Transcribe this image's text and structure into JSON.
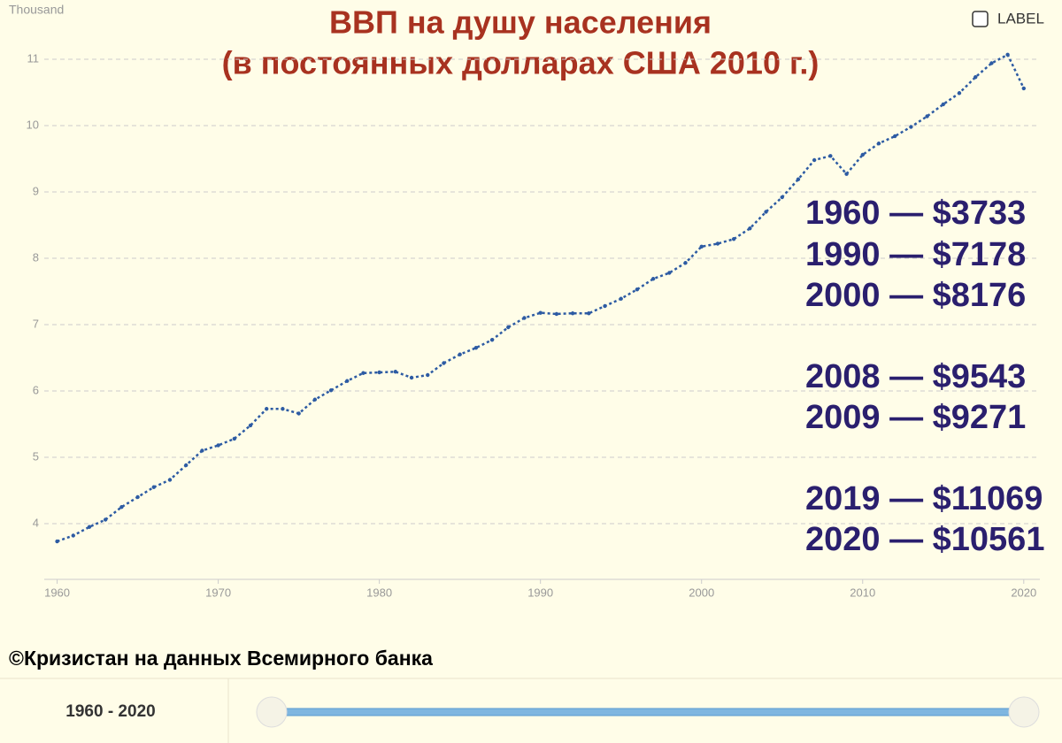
{
  "chart_data": {
    "type": "line",
    "title": "ВВП на душу населения",
    "subtitle": "(в постоянных долларах США 2010 г.)",
    "y_unit_label": "Thousand",
    "x": [
      1960,
      1961,
      1962,
      1963,
      1964,
      1965,
      1966,
      1967,
      1968,
      1969,
      1970,
      1971,
      1972,
      1973,
      1974,
      1975,
      1976,
      1977,
      1978,
      1979,
      1980,
      1981,
      1982,
      1983,
      1984,
      1985,
      1986,
      1987,
      1988,
      1989,
      1990,
      1991,
      1992,
      1993,
      1994,
      1995,
      1996,
      1997,
      1998,
      1999,
      2000,
      2001,
      2002,
      2003,
      2004,
      2005,
      2006,
      2007,
      2008,
      2009,
      2010,
      2011,
      2012,
      2013,
      2014,
      2015,
      2016,
      2017,
      2018,
      2019,
      2020
    ],
    "series": [
      {
        "color": "#2d5ba3",
        "values": [
          3.733,
          3.82,
          3.95,
          4.06,
          4.25,
          4.4,
          4.55,
          4.66,
          4.88,
          5.1,
          5.18,
          5.28,
          5.48,
          5.73,
          5.73,
          5.66,
          5.87,
          6.01,
          6.15,
          6.27,
          6.28,
          6.29,
          6.2,
          6.24,
          6.42,
          6.55,
          6.65,
          6.77,
          6.96,
          7.1,
          7.178,
          7.16,
          7.17,
          7.17,
          7.28,
          7.39,
          7.53,
          7.69,
          7.78,
          7.93,
          8.176,
          8.22,
          8.29,
          8.45,
          8.7,
          8.92,
          9.19,
          9.48,
          9.543,
          9.271,
          9.56,
          9.73,
          9.84,
          9.98,
          10.14,
          10.32,
          10.49,
          10.73,
          10.94,
          11.069,
          10.561
        ]
      }
    ],
    "xlim": [
      1959.2,
      2021
    ],
    "xticks": [
      1960,
      1970,
      1980,
      1990,
      2000,
      2010,
      2020
    ],
    "ylim": [
      3.16,
      11.6
    ],
    "yticks": [
      4,
      5,
      6,
      7,
      8,
      9,
      10,
      11
    ],
    "grid": true,
    "annotations": [
      "1960 — $3733",
      "1990 — $7178",
      "2000 — $8176",
      "2008 — $9543",
      "2009 — $9271",
      "2019 — $11069",
      "2020 — $10561"
    ],
    "source": "©Кризистан на данных Всемирного банка",
    "label_toggle": "LABEL",
    "range_label": "1960 - 2020"
  }
}
